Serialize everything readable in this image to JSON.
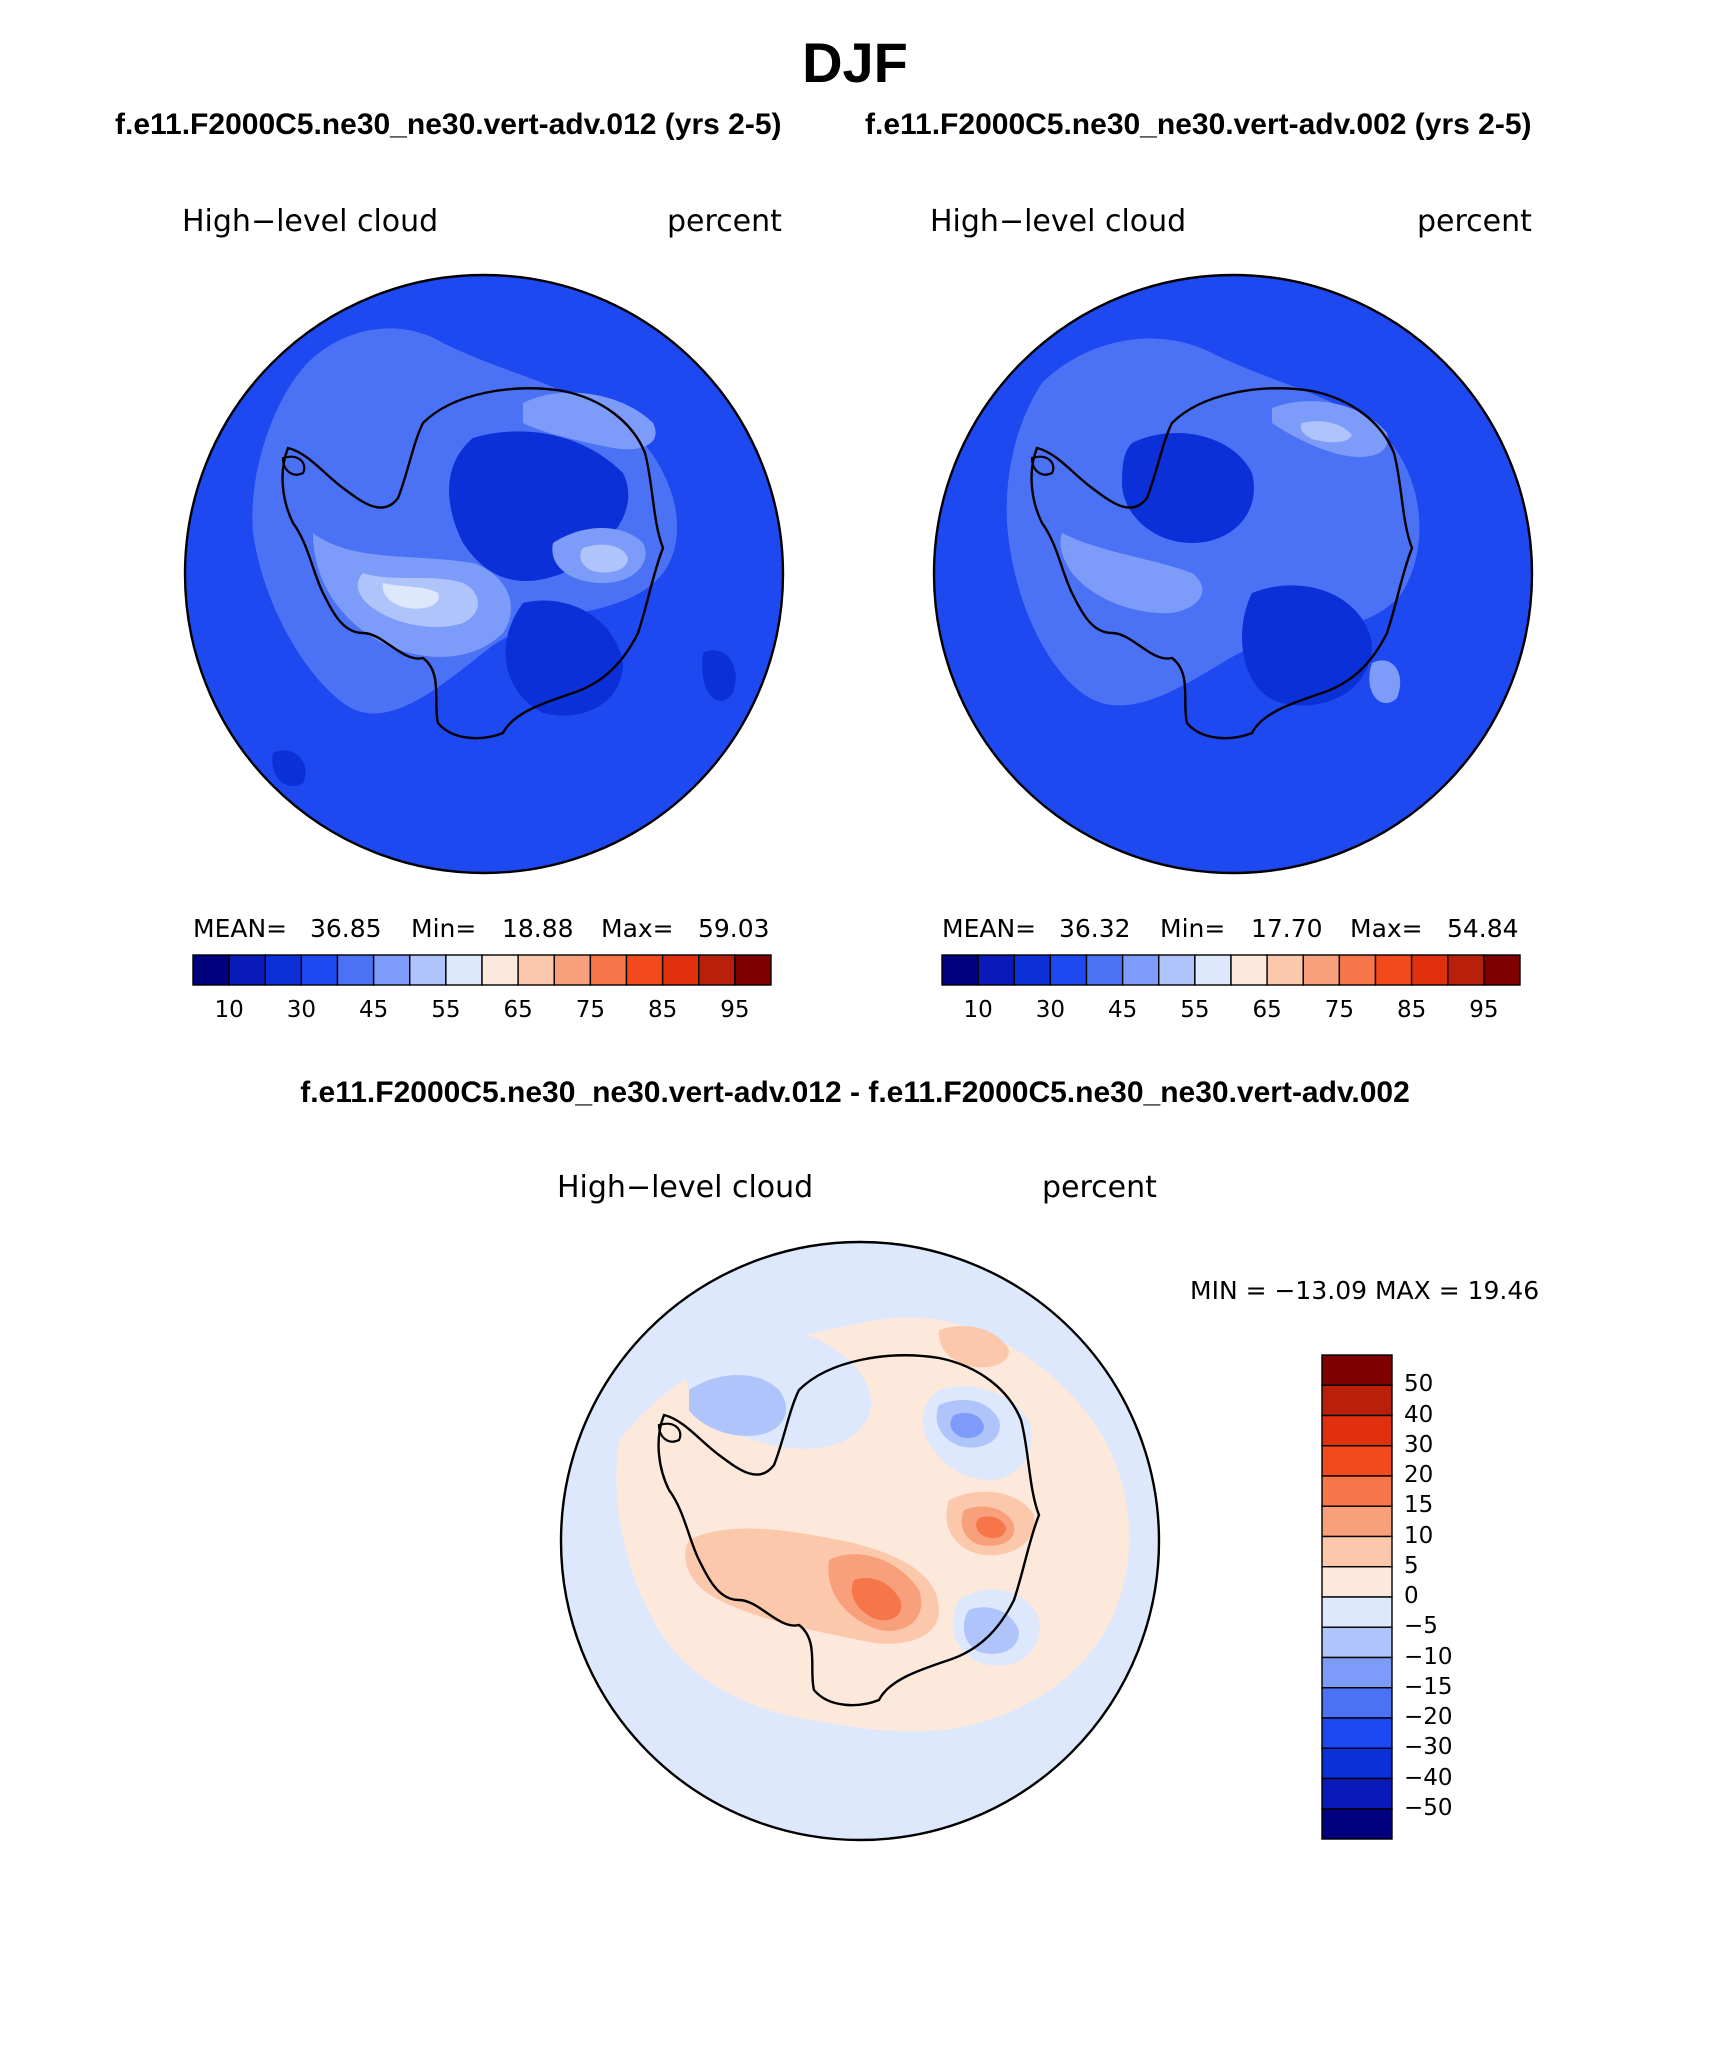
{
  "title": "DJF",
  "panels": [
    {
      "case": "f.e11.F2000C5.ne30_ne30.vert-adv.012 (yrs 2-5)",
      "variable": "High−level cloud",
      "units": "percent",
      "stats": {
        "mean_label": "MEAN=",
        "mean": "36.85",
        "min_label": "Min=",
        "min": "18.88",
        "max_label": "Max=",
        "max": "59.03"
      }
    },
    {
      "case": "f.e11.F2000C5.ne30_ne30.vert-adv.002 (yrs 2-5)",
      "variable": "High−level cloud",
      "units": "percent",
      "stats": {
        "mean_label": "MEAN=",
        "mean": "36.32",
        "min_label": "Min=",
        "min": "17.70",
        "max_label": "Max=",
        "max": "54.84"
      }
    }
  ],
  "colorbar": {
    "colors": [
      "#00007f",
      "#0a1ab8",
      "#0b30d8",
      "#1e48f0",
      "#4b72f5",
      "#7d9bf8",
      "#afc4fb",
      "#dde8fd",
      "#fde8dc",
      "#fbc8ac",
      "#f8a07c",
      "#f6764a",
      "#f24a1c",
      "#e0300e",
      "#b8200a",
      "#800000"
    ],
    "tick_labels": [
      "10",
      "30",
      "45",
      "55",
      "65",
      "75",
      "85",
      "95"
    ]
  },
  "difference": {
    "title": "f.e11.F2000C5.ne30_ne30.vert-adv.012 - f.e11.F2000C5.ne30_ne30.vert-adv.002",
    "variable": "High−level cloud",
    "units": "percent",
    "min_max": "MIN = −13.09 MAX =   19.46",
    "colorbar": {
      "colors_top_to_bottom": [
        "#800000",
        "#b8200a",
        "#e0300e",
        "#f24a1c",
        "#f6764a",
        "#f8a07c",
        "#fbc8ac",
        "#fde8dc",
        "#dde8fd",
        "#afc4fb",
        "#7d9bf8",
        "#4b72f5",
        "#1e48f0",
        "#0b30d8",
        "#0a1ab8",
        "#00007f"
      ],
      "tick_labels": [
        "50",
        "40",
        "30",
        "20",
        "15",
        "10",
        "5",
        "0",
        "−5",
        "−10",
        "−15",
        "−20",
        "−30",
        "−40",
        "−50"
      ]
    }
  }
}
